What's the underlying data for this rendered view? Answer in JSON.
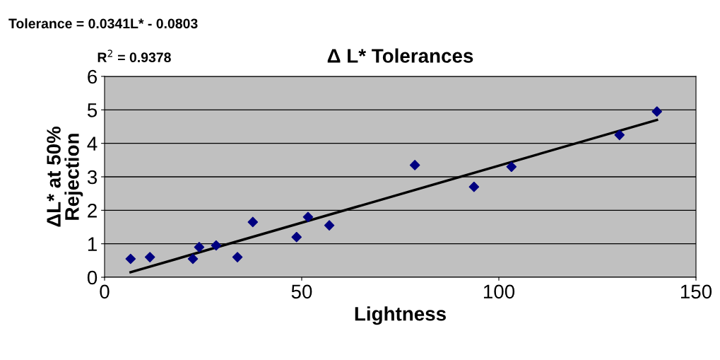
{
  "chart_data": {
    "type": "scatter",
    "title": "Δ L* Tolerances",
    "xlabel": "Lightness",
    "ylabel": "ΔL* at 50%\nRejection",
    "annotations": [
      "Tolerance = 0.0341L* - 0.0803",
      "R$^{2}$ = 0.9378"
    ],
    "series": [
      {
        "color": "#000080",
        "marker": "diamond",
        "x": [
          6.6,
          11.5,
          22.4,
          24,
          28.3,
          33.7,
          37.6,
          48.7,
          51.6,
          57,
          78.7,
          93.7,
          103.2,
          130.6,
          140.1
        ],
        "values": [
          0.55,
          0.6,
          0.55,
          0.9,
          0.95,
          0.6,
          1.65,
          1.2,
          1.8,
          1.55,
          3.35,
          2.7,
          3.3,
          4.25,
          4.95
        ]
      },
      {
        "type": "line",
        "color": "#000000",
        "marker": "none",
        "x": [
          6.6,
          140.1
        ],
        "values": [
          0.15,
          4.7
        ]
      }
    ],
    "xlim": [
      0,
      150
    ],
    "xticks": [
      0,
      50,
      100,
      150
    ],
    "ylim": [
      0,
      6
    ],
    "yticks": [
      0,
      1,
      2,
      3,
      4,
      5,
      6
    ],
    "grid": "y"
  }
}
